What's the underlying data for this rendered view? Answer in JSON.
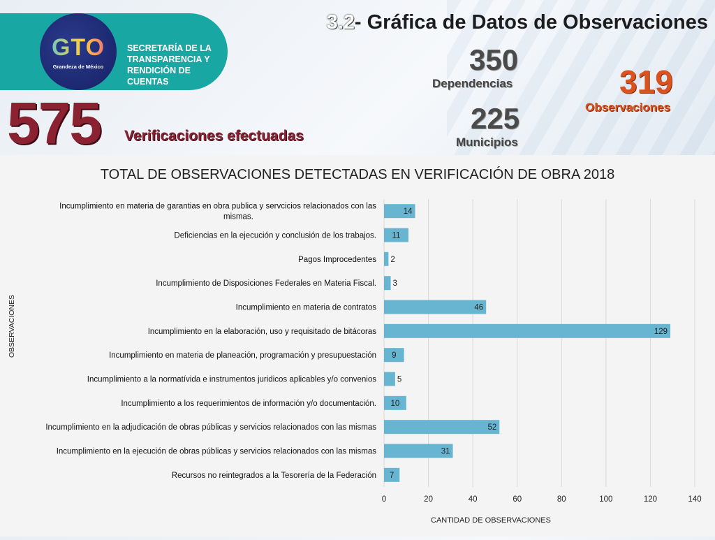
{
  "header": {
    "title_number": "3.2",
    "title_text": "- Gráfica de Datos de Observaciones",
    "logo": {
      "brand": "GTO",
      "tagline": "Grandeza de México",
      "org_lines": [
        "SECRETARÍA DE LA",
        "TRANSPARENCIA Y",
        "RENDICIÓN DE",
        "CUENTAS"
      ]
    },
    "stats": {
      "verificaciones": {
        "value": "575",
        "label": "Verificaciones efectuadas"
      },
      "dependencias": {
        "value": "350",
        "label": "Dependencias"
      },
      "municipios": {
        "value": "225",
        "label": "Municipios"
      },
      "observaciones": {
        "value": "319",
        "label": "Observaciones"
      }
    }
  },
  "chart_data": {
    "type": "bar",
    "orientation": "horizontal",
    "title": "TOTAL DE OBSERVACIONES DETECTADAS EN VERIFICACIÓN DE OBRA 2018",
    "xlabel": "CANTIDAD DE OBSERVACIONES",
    "ylabel": "OBSERVACIONES",
    "xlim": [
      0,
      140
    ],
    "xticks": [
      0,
      20,
      40,
      60,
      80,
      100,
      120,
      140
    ],
    "grid": true,
    "bar_color": "#67b5d1",
    "categories": [
      [
        "Incumplimiento en materia de garantias en obra publica y servcicios relacionados con las",
        "mismas."
      ],
      [
        "Deficiencias en la ejecución y conclusión de los trabajos."
      ],
      [
        "Pagos Improcedentes"
      ],
      [
        "Incumplimiento de Disposiciones Federales en Materia Fiscal."
      ],
      [
        "Incumplimiento en materia de contratos"
      ],
      [
        "Incumplimiento en la elaboración, uso y requisitado de bitácoras"
      ],
      [
        "Incumplimiento en materia de planeación, programación y presupuestación"
      ],
      [
        "Incumplimiento a la normatívida e instrumentos juridicos aplicables y/o convenios"
      ],
      [
        "Incumplimiento a los requerimientos de información y/o documentación."
      ],
      [
        "Incumplimiento en la adjudicación de obras públicas y servicios relacionados con las mismas"
      ],
      [
        "Incumplimiento en la ejecución de obras públicas y servicios relacionados con las mismas"
      ],
      [
        "Recursos no reintegrados a la Tesorería de la Federación"
      ]
    ],
    "values": [
      14,
      11,
      2,
      3,
      46,
      129,
      9,
      5,
      10,
      52,
      31,
      7
    ]
  }
}
